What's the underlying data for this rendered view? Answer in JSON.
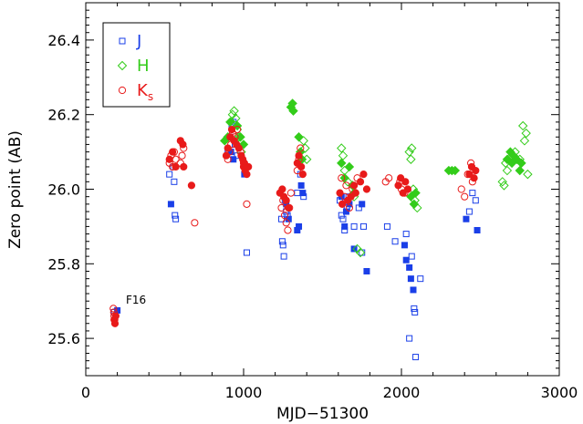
{
  "chart_data": {
    "type": "scatter",
    "xlabel": "MJD−51300",
    "ylabel": "Zero point (AB)",
    "xlim": [
      0,
      3000
    ],
    "ylim": [
      25.5,
      26.5
    ],
    "xticks": [
      0,
      1000,
      2000,
      3000
    ],
    "yticks": [
      25.6,
      25.8,
      26.0,
      26.2,
      26.4
    ],
    "xtick_labels": [
      "0",
      "1000",
      "2000",
      "3000"
    ],
    "ytick_labels": [
      "25.6",
      "25.8",
      "26.0",
      "26.2",
      "26.4"
    ],
    "legend_position": "top-left",
    "annotation": {
      "text": "F16",
      "x": 270,
      "y": 25.675
    },
    "series": [
      {
        "name": "J",
        "legend_label": "J",
        "marker": "square",
        "color": "#1a3fe8",
        "open": [
          [
            180,
            25.67
          ],
          [
            530,
            26.04
          ],
          [
            555,
            26.06
          ],
          [
            560,
            26.02
          ],
          [
            565,
            25.93
          ],
          [
            570,
            25.92
          ],
          [
            900,
            26.1
          ],
          [
            915,
            26.14
          ],
          [
            925,
            26.17
          ],
          [
            935,
            26.18
          ],
          [
            945,
            26.12
          ],
          [
            960,
            26.09
          ],
          [
            1020,
            25.83
          ],
          [
            1240,
            25.92
          ],
          [
            1245,
            25.86
          ],
          [
            1250,
            25.85
          ],
          [
            1255,
            25.82
          ],
          [
            1262,
            25.97
          ],
          [
            1270,
            25.94
          ],
          [
            1278,
            25.93
          ],
          [
            1340,
            25.99
          ],
          [
            1360,
            26.04
          ],
          [
            1380,
            25.98
          ],
          [
            1610,
            25.97
          ],
          [
            1620,
            25.93
          ],
          [
            1630,
            25.92
          ],
          [
            1640,
            25.89
          ],
          [
            1655,
            25.95
          ],
          [
            1665,
            25.98
          ],
          [
            1700,
            25.9
          ],
          [
            1730,
            25.95
          ],
          [
            1750,
            25.83
          ],
          [
            1760,
            25.9
          ],
          [
            1910,
            25.9
          ],
          [
            1960,
            25.86
          ],
          [
            2030,
            25.88
          ],
          [
            2050,
            25.6
          ],
          [
            2065,
            25.82
          ],
          [
            2080,
            25.68
          ],
          [
            2085,
            25.67
          ],
          [
            2090,
            25.55
          ],
          [
            2120,
            25.76
          ],
          [
            2430,
            25.94
          ],
          [
            2450,
            25.99
          ],
          [
            2470,
            25.97
          ]
        ],
        "filled": [
          [
            200,
            25.675
          ],
          [
            540,
            25.96
          ],
          [
            920,
            26.1
          ],
          [
            935,
            26.08
          ],
          [
            1005,
            26.04
          ],
          [
            1270,
            25.96
          ],
          [
            1285,
            25.92
          ],
          [
            1340,
            25.89
          ],
          [
            1350,
            25.9
          ],
          [
            1365,
            26.01
          ],
          [
            1375,
            25.99
          ],
          [
            1620,
            25.98
          ],
          [
            1640,
            25.9
          ],
          [
            1650,
            25.94
          ],
          [
            1670,
            25.96
          ],
          [
            1700,
            25.84
          ],
          [
            1750,
            25.96
          ],
          [
            1780,
            25.78
          ],
          [
            2020,
            25.85
          ],
          [
            2030,
            25.81
          ],
          [
            2050,
            25.79
          ],
          [
            2060,
            25.76
          ],
          [
            2075,
            25.73
          ],
          [
            2410,
            25.92
          ],
          [
            2480,
            25.89
          ]
        ]
      },
      {
        "name": "H",
        "legend_label": "H",
        "marker": "diamond",
        "color": "#33cc1a",
        "open": [
          [
            930,
            26.2
          ],
          [
            940,
            26.21
          ],
          [
            950,
            26.19
          ],
          [
            960,
            26.16
          ],
          [
            970,
            26.14
          ],
          [
            985,
            26.1
          ],
          [
            1380,
            26.13
          ],
          [
            1390,
            26.11
          ],
          [
            1400,
            26.08
          ],
          [
            1620,
            26.11
          ],
          [
            1630,
            26.09
          ],
          [
            1640,
            26.05
          ],
          [
            1660,
            26.02
          ],
          [
            1700,
            25.98
          ],
          [
            1720,
            25.84
          ],
          [
            1740,
            25.83
          ],
          [
            2050,
            26.1
          ],
          [
            2060,
            26.08
          ],
          [
            2065,
            26.11
          ],
          [
            2075,
            26.0
          ],
          [
            2085,
            25.97
          ],
          [
            2100,
            25.95
          ],
          [
            2640,
            26.02
          ],
          [
            2650,
            26.01
          ],
          [
            2660,
            26.07
          ],
          [
            2670,
            26.05
          ],
          [
            2700,
            26.09
          ],
          [
            2720,
            26.1
          ],
          [
            2750,
            26.08
          ],
          [
            2770,
            26.17
          ],
          [
            2780,
            26.13
          ],
          [
            2790,
            26.15
          ],
          [
            2800,
            26.04
          ]
        ],
        "filled": [
          [
            880,
            26.13
          ],
          [
            900,
            26.14
          ],
          [
            915,
            26.18
          ],
          [
            960,
            26.17
          ],
          [
            980,
            26.14
          ],
          [
            1000,
            26.12
          ],
          [
            1300,
            26.22
          ],
          [
            1310,
            26.23
          ],
          [
            1315,
            26.21
          ],
          [
            1350,
            26.14
          ],
          [
            1360,
            26.1
          ],
          [
            1370,
            26.08
          ],
          [
            1620,
            26.07
          ],
          [
            1640,
            26.03
          ],
          [
            1670,
            26.06
          ],
          [
            1690,
            26.01
          ],
          [
            1700,
            25.99
          ],
          [
            2060,
            25.98
          ],
          [
            2080,
            25.96
          ],
          [
            2090,
            25.99
          ],
          [
            2300,
            26.05
          ],
          [
            2320,
            26.05
          ],
          [
            2340,
            26.05
          ],
          [
            2670,
            26.08
          ],
          [
            2690,
            26.1
          ],
          [
            2700,
            26.07
          ],
          [
            2710,
            26.09
          ],
          [
            2730,
            26.08
          ],
          [
            2750,
            26.05
          ],
          [
            2760,
            26.07
          ]
        ]
      },
      {
        "name": "K_s",
        "legend_label": "K",
        "legend_subscript": "s",
        "marker": "circle",
        "color": "#e81a1a",
        "open": [
          [
            175,
            25.68
          ],
          [
            178,
            25.67
          ],
          [
            180,
            25.66
          ],
          [
            183,
            25.65
          ],
          [
            530,
            26.07
          ],
          [
            540,
            26.09
          ],
          [
            550,
            26.06
          ],
          [
            560,
            26.1
          ],
          [
            570,
            26.08
          ],
          [
            600,
            26.07
          ],
          [
            610,
            26.09
          ],
          [
            620,
            26.11
          ],
          [
            690,
            25.91
          ],
          [
            900,
            26.08
          ],
          [
            910,
            26.1
          ],
          [
            920,
            26.12
          ],
          [
            930,
            26.15
          ],
          [
            945,
            26.14
          ],
          [
            960,
            26.16
          ],
          [
            980,
            26.1
          ],
          [
            1000,
            26.07
          ],
          [
            1020,
            25.96
          ],
          [
            1240,
            25.95
          ],
          [
            1250,
            25.97
          ],
          [
            1260,
            25.93
          ],
          [
            1270,
            25.91
          ],
          [
            1280,
            25.89
          ],
          [
            1290,
            25.95
          ],
          [
            1300,
            25.99
          ],
          [
            1340,
            26.05
          ],
          [
            1350,
            26.08
          ],
          [
            1360,
            26.11
          ],
          [
            1620,
            26.03
          ],
          [
            1640,
            25.98
          ],
          [
            1650,
            26.01
          ],
          [
            1670,
            25.95
          ],
          [
            1690,
            26.0
          ],
          [
            1720,
            26.03
          ],
          [
            1900,
            26.02
          ],
          [
            1920,
            26.03
          ],
          [
            1990,
            26.02
          ],
          [
            2000,
            26.0
          ],
          [
            2020,
            25.99
          ],
          [
            2380,
            26.0
          ],
          [
            2400,
            25.98
          ],
          [
            2420,
            26.04
          ],
          [
            2440,
            26.07
          ],
          [
            2450,
            26.02
          ]
        ],
        "filled": [
          [
            180,
            25.65
          ],
          [
            185,
            25.64
          ],
          [
            190,
            25.66
          ],
          [
            530,
            26.08
          ],
          [
            550,
            26.1
          ],
          [
            570,
            26.06
          ],
          [
            600,
            26.13
          ],
          [
            615,
            26.12
          ],
          [
            620,
            26.06
          ],
          [
            670,
            26.01
          ],
          [
            890,
            26.09
          ],
          [
            900,
            26.11
          ],
          [
            915,
            26.14
          ],
          [
            925,
            26.16
          ],
          [
            940,
            26.13
          ],
          [
            955,
            26.12
          ],
          [
            970,
            26.11
          ],
          [
            985,
            26.09
          ],
          [
            995,
            26.08
          ],
          [
            1000,
            26.06
          ],
          [
            1005,
            26.07
          ],
          [
            1010,
            26.05
          ],
          [
            1020,
            26.04
          ],
          [
            1030,
            26.06
          ],
          [
            1230,
            25.99
          ],
          [
            1245,
            26.0
          ],
          [
            1255,
            25.98
          ],
          [
            1270,
            25.97
          ],
          [
            1285,
            25.95
          ],
          [
            1340,
            26.07
          ],
          [
            1350,
            26.09
          ],
          [
            1365,
            26.06
          ],
          [
            1375,
            26.04
          ],
          [
            1610,
            25.99
          ],
          [
            1625,
            25.96
          ],
          [
            1660,
            25.97
          ],
          [
            1680,
            25.98
          ],
          [
            1700,
            26.01
          ],
          [
            1710,
            25.99
          ],
          [
            1740,
            26.02
          ],
          [
            1760,
            26.04
          ],
          [
            1780,
            26.0
          ],
          [
            1980,
            26.01
          ],
          [
            1995,
            26.03
          ],
          [
            2010,
            25.99
          ],
          [
            2025,
            26.02
          ],
          [
            2040,
            26.0
          ],
          [
            2430,
            26.04
          ],
          [
            2445,
            26.06
          ],
          [
            2460,
            26.03
          ],
          [
            2470,
            26.05
          ]
        ]
      }
    ]
  }
}
